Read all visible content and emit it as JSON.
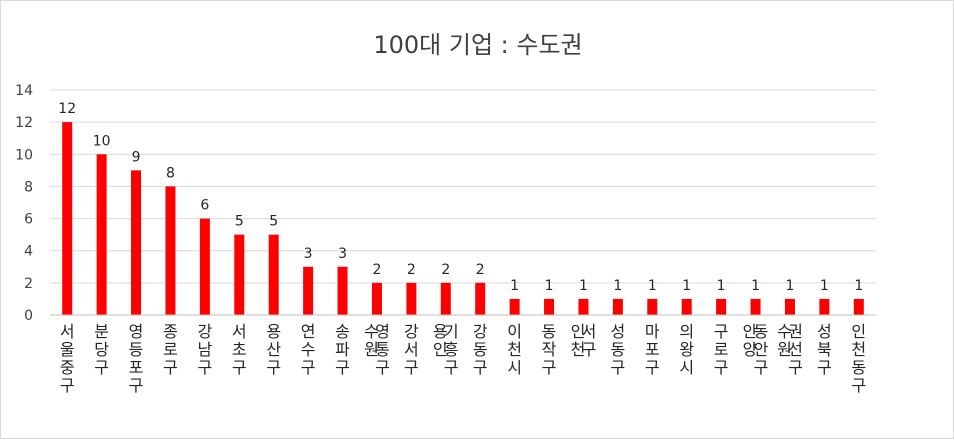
{
  "chart_data": {
    "type": "bar",
    "title": "100대 기업 : 수도권",
    "xlabel": "",
    "ylabel": "",
    "ylim": [
      0,
      14
    ],
    "yticks": [
      0,
      2,
      4,
      6,
      8,
      10,
      12,
      14
    ],
    "grid": true,
    "legend": "none",
    "bar_color": "#ff0000",
    "categories": [
      "서울중구",
      "분당구",
      "영등포구",
      "종로구",
      "강남구",
      "서초구",
      "용산구",
      "연수구",
      "송파구",
      "수원 영통구",
      "강서구",
      "용인 기흥구",
      "강동구",
      "이천시",
      "동작구",
      "인천 서구",
      "성동구",
      "마포구",
      "의왕시",
      "구로구",
      "안양 동안구",
      "수원 권선구",
      "성북구",
      "인천동구"
    ],
    "values": [
      12,
      10,
      9,
      8,
      6,
      5,
      5,
      3,
      3,
      2,
      2,
      2,
      2,
      1,
      1,
      1,
      1,
      1,
      1,
      1,
      1,
      1,
      1,
      1
    ]
  }
}
